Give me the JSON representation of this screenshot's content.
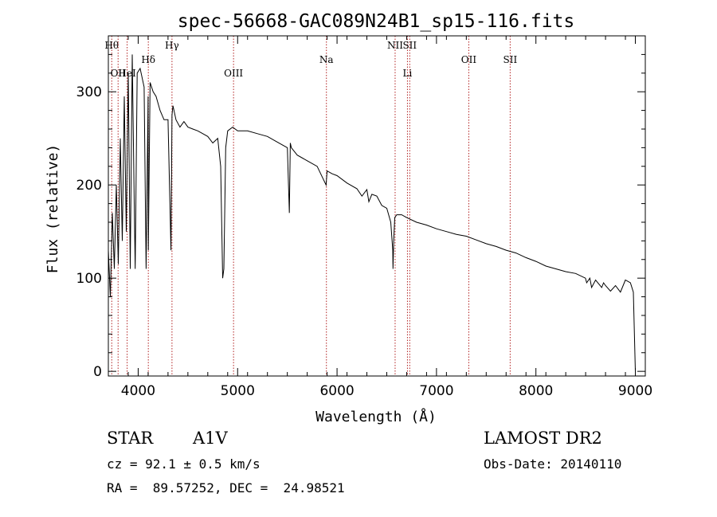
{
  "chart_data": {
    "type": "line",
    "title": "spec-56668-GAC089N24B1_sp15-116.fits",
    "xlabel": "Wavelength (Å)",
    "ylabel": "Flux (relative)",
    "xlim": [
      3700,
      9100
    ],
    "ylim": [
      -5,
      360
    ],
    "xticks": [
      4000,
      5000,
      6000,
      7000,
      8000,
      9000
    ],
    "yticks": [
      0,
      100,
      200,
      300
    ],
    "grid": false,
    "line_color": "#000000",
    "marker_color": "#b22222",
    "series": [
      {
        "x": [
          3700,
          3720,
          3740,
          3760,
          3780,
          3800,
          3820,
          3840,
          3860,
          3880,
          3900,
          3920,
          3940,
          3960,
          3970,
          3990,
          4020,
          4060,
          4080,
          4100,
          4102,
          4120,
          4150,
          4180,
          4220,
          4260,
          4300,
          4330,
          4340,
          4350,
          4380,
          4420,
          4460,
          4500,
          4550,
          4600,
          4650,
          4700,
          4750,
          4800,
          4830,
          4850,
          4862,
          4880,
          4900,
          4950,
          5000,
          5100,
          5200,
          5300,
          5400,
          5500,
          5520,
          5530,
          5540,
          5600,
          5700,
          5800,
          5890,
          5900,
          5950,
          6000,
          6100,
          6200,
          6250,
          6300,
          6320,
          6350,
          6400,
          6450,
          6500,
          6540,
          6560,
          6563,
          6570,
          6580,
          6600,
          6650,
          6700,
          6800,
          6900,
          7000,
          7100,
          7200,
          7300,
          7400,
          7500,
          7600,
          7700,
          7800,
          7900,
          8000,
          8100,
          8200,
          8300,
          8400,
          8498,
          8510,
          8542,
          8560,
          8600,
          8662,
          8680,
          8700,
          8750,
          8800,
          8850,
          8900,
          8950,
          8980,
          9000
        ],
        "y": [
          130,
          80,
          170,
          110,
          200,
          115,
          250,
          140,
          295,
          150,
          320,
          110,
          340,
          180,
          110,
          320,
          325,
          305,
          110,
          295,
          130,
          310,
          300,
          295,
          280,
          270,
          270,
          130,
          275,
          285,
          270,
          262,
          268,
          262,
          260,
          258,
          255,
          252,
          245,
          250,
          220,
          100,
          110,
          240,
          258,
          262,
          258,
          258,
          255,
          252,
          246,
          240,
          170,
          245,
          240,
          232,
          226,
          220,
          200,
          215,
          212,
          210,
          202,
          196,
          188,
          195,
          182,
          190,
          188,
          178,
          175,
          160,
          130,
          110,
          140,
          165,
          168,
          168,
          165,
          160,
          157,
          153,
          150,
          147,
          145,
          141,
          137,
          134,
          130,
          127,
          122,
          118,
          113,
          110,
          107,
          105,
          100,
          95,
          100,
          90,
          98,
          90,
          95,
          92,
          86,
          92,
          85,
          98,
          95,
          85,
          0
        ]
      }
    ],
    "line_markers": [
      {
        "wavelength": 3734,
        "label": "Hθ",
        "row": 1
      },
      {
        "wavelength": 3798,
        "label": "OII",
        "row": 3
      },
      {
        "wavelength": 3889,
        "label": "HeI",
        "row": 3
      },
      {
        "wavelength": 4102,
        "label": "Hδ",
        "row": 2
      },
      {
        "wavelength": 4340,
        "label": "Hγ",
        "row": 1
      },
      {
        "wavelength": 4959,
        "label": "OIII",
        "row": 3
      },
      {
        "wavelength": 5893,
        "label": "Na",
        "row": 2
      },
      {
        "wavelength": 6584,
        "label": "NII",
        "row": 1
      },
      {
        "wavelength": 6708,
        "label": "Li",
        "row": 3
      },
      {
        "wavelength": 6731,
        "label": "SII",
        "row": 1
      },
      {
        "wavelength": 7325,
        "label": "OII",
        "row": 2
      },
      {
        "wavelength": 7741,
        "label": "SII",
        "row": 2
      }
    ]
  },
  "footer": {
    "class_label": "STAR",
    "subclass": "A1V",
    "survey": "LAMOST DR2",
    "cz": "cz = 92.1 ± 0.5 km/s",
    "obs_date": "Obs-Date: 20140110",
    "coords": "RA =  89.57252, DEC =  24.98521"
  }
}
